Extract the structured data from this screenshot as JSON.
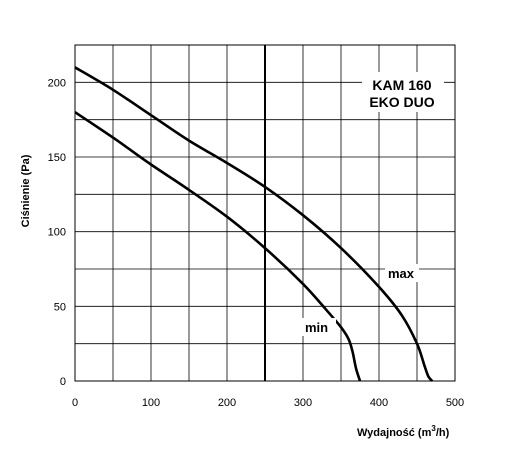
{
  "chart_data": {
    "type": "line",
    "ylabel": "Ciśnienie (Pa)",
    "xlabel_main": "Wydajność (m",
    "xlabel_sup": "3",
    "xlabel_tail": "/h)",
    "model_line1": "KAM 160",
    "model_line2": "EKO DUO",
    "xlim": [
      0,
      500
    ],
    "ylim": [
      0,
      225
    ],
    "x_ticks": [
      0,
      100,
      200,
      300,
      400,
      500
    ],
    "y_ticks": [
      0,
      50,
      100,
      150,
      200
    ],
    "x_grid": [
      0,
      50,
      100,
      150,
      200,
      250,
      300,
      350,
      400,
      450,
      500
    ],
    "y_grid": [
      0,
      25,
      50,
      75,
      100,
      125,
      150,
      175,
      200,
      225
    ],
    "grid": true,
    "reference_line_x": 250,
    "series": [
      {
        "name": "max",
        "x": [
          0,
          50,
          100,
          150,
          200,
          250,
          300,
          350,
          400,
          430,
          450,
          460,
          465,
          470
        ],
        "y": [
          210,
          195,
          178,
          161,
          146,
          130,
          111,
          89,
          63,
          44,
          25,
          10,
          3,
          0
        ]
      },
      {
        "name": "min",
        "x": [
          0,
          50,
          100,
          150,
          200,
          250,
          300,
          330,
          350,
          360,
          365,
          370,
          375
        ],
        "y": [
          180,
          163,
          145,
          128,
          110,
          89,
          65,
          48,
          36,
          28,
          20,
          8,
          0
        ]
      }
    ]
  }
}
